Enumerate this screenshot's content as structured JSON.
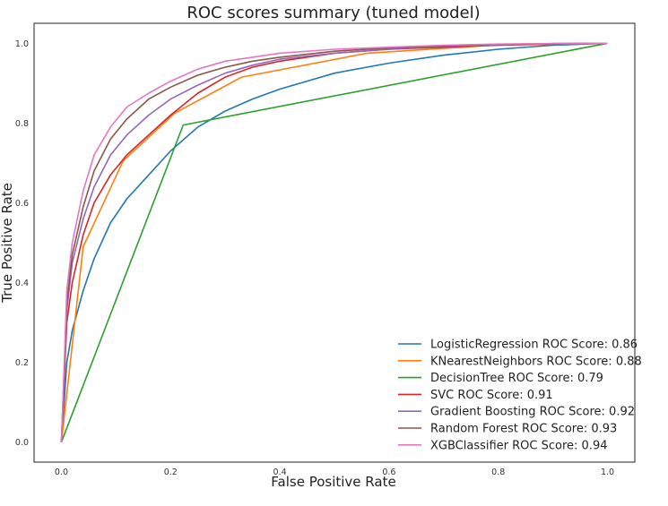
{
  "chart_data": {
    "type": "line",
    "title": "ROC scores summary (tuned model)",
    "xlabel": "False Positive Rate",
    "ylabel": "True Positive Rate",
    "xlim": [
      -0.05,
      1.05
    ],
    "ylim": [
      -0.05,
      1.05
    ],
    "xticks": [
      "0.0",
      "0.2",
      "0.4",
      "0.6",
      "0.8",
      "1.0"
    ],
    "yticks": [
      "0.0",
      "0.2",
      "0.4",
      "0.6",
      "0.8",
      "1.0"
    ],
    "grid": false,
    "legend_position": "lower-right",
    "series": [
      {
        "name": "LogisticRegression ROC Score: 0.86",
        "color": "#1f77b4",
        "x": [
          0,
          0.01,
          0.02,
          0.04,
          0.06,
          0.09,
          0.12,
          0.16,
          0.2,
          0.25,
          0.3,
          0.35,
          0.4,
          0.45,
          0.5,
          0.6,
          0.7,
          0.8,
          0.9,
          1.0
        ],
        "y": [
          0,
          0.2,
          0.28,
          0.38,
          0.46,
          0.55,
          0.61,
          0.67,
          0.73,
          0.79,
          0.83,
          0.86,
          0.885,
          0.905,
          0.925,
          0.95,
          0.97,
          0.985,
          0.995,
          1.0
        ]
      },
      {
        "name": "KNearestNeighbors ROC Score: 0.88",
        "color": "#ff7f0e",
        "x": [
          0,
          0.04,
          0.113,
          0.208,
          0.33,
          0.56,
          0.79,
          1.0
        ],
        "y": [
          0,
          0.49,
          0.705,
          0.825,
          0.915,
          0.975,
          0.995,
          1.0
        ]
      },
      {
        "name": "DecisionTree ROC Score: 0.79",
        "color": "#2ca02c",
        "x": [
          0,
          0.223,
          1.0
        ],
        "y": [
          0,
          0.795,
          1.0
        ]
      },
      {
        "name": "SVC ROC Score: 0.91",
        "color": "#d62728",
        "x": [
          0,
          0.01,
          0.02,
          0.04,
          0.06,
          0.09,
          0.12,
          0.16,
          0.2,
          0.25,
          0.3,
          0.35,
          0.4,
          0.5,
          0.6,
          0.7,
          0.8,
          0.9,
          1.0
        ],
        "y": [
          0,
          0.3,
          0.4,
          0.52,
          0.6,
          0.67,
          0.72,
          0.77,
          0.82,
          0.875,
          0.915,
          0.94,
          0.955,
          0.975,
          0.985,
          0.99,
          0.995,
          0.998,
          1.0
        ]
      },
      {
        "name": "Gradient Boosting ROC Score: 0.92",
        "color": "#9467bd",
        "x": [
          0,
          0.01,
          0.02,
          0.04,
          0.06,
          0.09,
          0.12,
          0.16,
          0.2,
          0.25,
          0.3,
          0.35,
          0.4,
          0.5,
          0.6,
          0.7,
          0.8,
          0.9,
          1.0
        ],
        "y": [
          0,
          0.33,
          0.45,
          0.56,
          0.64,
          0.72,
          0.77,
          0.82,
          0.86,
          0.895,
          0.925,
          0.945,
          0.96,
          0.975,
          0.985,
          0.992,
          0.996,
          0.999,
          1.0
        ]
      },
      {
        "name": "Random Forest ROC Score: 0.93",
        "color": "#8c564b",
        "x": [
          0,
          0.01,
          0.02,
          0.04,
          0.06,
          0.09,
          0.12,
          0.16,
          0.2,
          0.25,
          0.3,
          0.35,
          0.4,
          0.5,
          0.6,
          0.7,
          0.8,
          0.9,
          1.0
        ],
        "y": [
          0,
          0.35,
          0.47,
          0.59,
          0.68,
          0.76,
          0.81,
          0.86,
          0.89,
          0.92,
          0.94,
          0.955,
          0.965,
          0.98,
          0.988,
          0.993,
          0.997,
          0.999,
          1.0
        ]
      },
      {
        "name": "XGBClassifier ROC Score: 0.94",
        "color": "#e377c2",
        "x": [
          0,
          0.01,
          0.02,
          0.04,
          0.06,
          0.09,
          0.12,
          0.16,
          0.2,
          0.25,
          0.3,
          0.35,
          0.4,
          0.5,
          0.6,
          0.7,
          0.8,
          0.9,
          1.0
        ],
        "y": [
          0,
          0.38,
          0.5,
          0.63,
          0.72,
          0.79,
          0.84,
          0.875,
          0.905,
          0.935,
          0.955,
          0.965,
          0.975,
          0.985,
          0.99,
          0.995,
          0.998,
          0.999,
          1.0
        ]
      }
    ]
  }
}
